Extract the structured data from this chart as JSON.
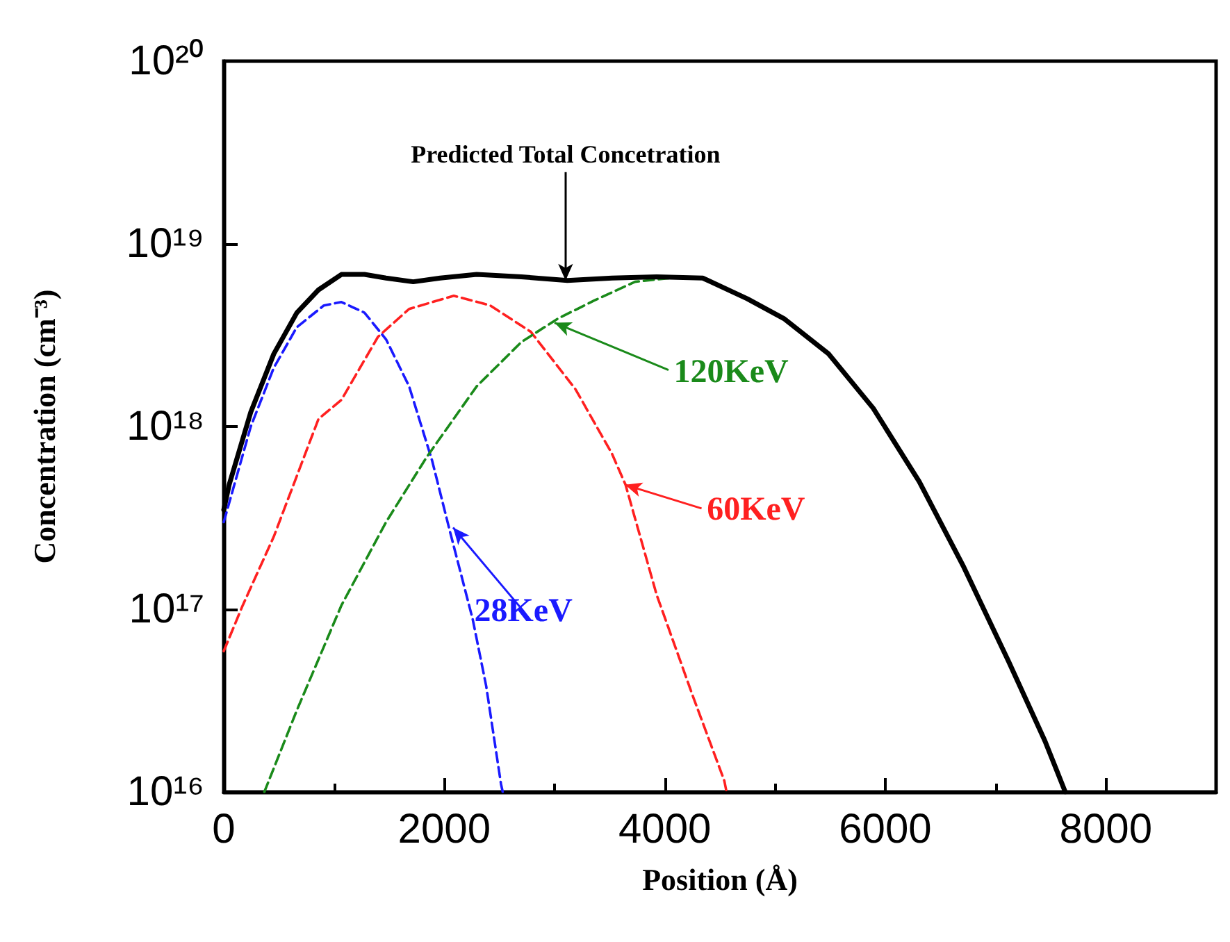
{
  "chart_data": {
    "type": "line",
    "xlabel": "Position (Å)",
    "ylabel": "Concentration (cm⁻³)",
    "log": "y",
    "xlim": [
      0,
      9000
    ],
    "xticks": [
      0,
      2000,
      4000,
      6000,
      8000
    ],
    "ylim": [
      1e+16,
      1e+20
    ],
    "yticks": [
      {
        "value": 1e+16,
        "label": "10¹⁶"
      },
      {
        "value": 1e+17,
        "label": "10¹⁷"
      },
      {
        "value": 1e+18,
        "label": "10¹⁸"
      },
      {
        "value": 1e+19,
        "label": "10¹⁹"
      },
      {
        "value": 1e+20,
        "label": "10²⁰"
      }
    ],
    "grid": false,
    "marker": "none",
    "series": [
      {
        "color": "#000000",
        "line_style": "solid",
        "x": [
          0,
          49,
          245,
          454,
          663,
          859,
          1067,
          1276,
          1472,
          1718,
          1963,
          2294,
          2699,
          3117,
          3521,
          3926,
          4344,
          4749,
          5080,
          5485,
          5890,
          6307,
          6712,
          7117,
          7448,
          7632
        ],
        "values": [
          3.5e+17,
          4.8e+17,
          1.2e+18,
          2.5e+18,
          4.2e+18,
          5.6e+18,
          6.8e+18,
          6.8e+18,
          6.5e+18,
          6.2e+18,
          6.5e+18,
          6.8e+18,
          6.6e+18,
          6.3e+18,
          6.5e+18,
          6.6e+18,
          6.5e+18,
          5e+18,
          3.9e+18,
          2.5e+18,
          1.26e+18,
          5e+17,
          1.7e+17,
          5.2e+16,
          1.9e+16,
          1e+16
        ]
      },
      {
        "color": "#1a1aff",
        "line_style": "dashed",
        "x": [
          0,
          245,
          454,
          663,
          908,
          1067,
          1276,
          1472,
          1681,
          1890,
          2049,
          2258,
          2380,
          2515,
          2530
        ],
        "values": [
          3e+17,
          1e+18,
          2.1e+18,
          3.5e+18,
          4.6e+18,
          4.8e+18,
          4.2e+18,
          3e+18,
          1.66e+18,
          6.5e+17,
          2.7e+17,
          8.8e+16,
          3.8e+16,
          1.1e+16,
          1e+16
        ]
      },
      {
        "color": "#ff2020",
        "line_style": "dashed",
        "x": [
          0,
          172,
          454,
          859,
          1067,
          1399,
          1681,
          2086,
          2417,
          2785,
          3190,
          3521,
          3644,
          3926,
          4258,
          4540,
          4560
        ],
        "values": [
          5.9e+16,
          1.05e+17,
          2.5e+17,
          1.1e+18,
          1.4e+18,
          3.1e+18,
          4.4e+18,
          5.2e+18,
          4.6e+18,
          3.3e+18,
          1.6e+18,
          7.1e+17,
          4.8e+17,
          1.2e+17,
          3.3e+16,
          1.15e+16,
          1e+16
        ]
      },
      {
        "color": "#1a8a1a",
        "line_style": "dashed",
        "x": [
          368,
          663,
          1067,
          1472,
          1840,
          2294,
          2699,
          3031,
          3362,
          3730,
          4049
        ],
        "values": [
          1e+16,
          2.8e+16,
          1.05e+17,
          3e+17,
          6.8e+17,
          1.66e+18,
          2.9e+18,
          3.9e+18,
          4.9e+18,
          6.2e+18,
          6.5e+18
        ]
      }
    ],
    "annotations": [
      {
        "text": "Predicted Total Concetration",
        "x": 3100,
        "y": 6.3e+18
      },
      {
        "text": "28KeV",
        "x": 2080,
        "y": 2.8e+17
      },
      {
        "text": "60KeV",
        "x": 3640,
        "y": 4.8e+17
      },
      {
        "text": "120KeV",
        "x": 3000,
        "y": 3.7e+18
      }
    ]
  }
}
